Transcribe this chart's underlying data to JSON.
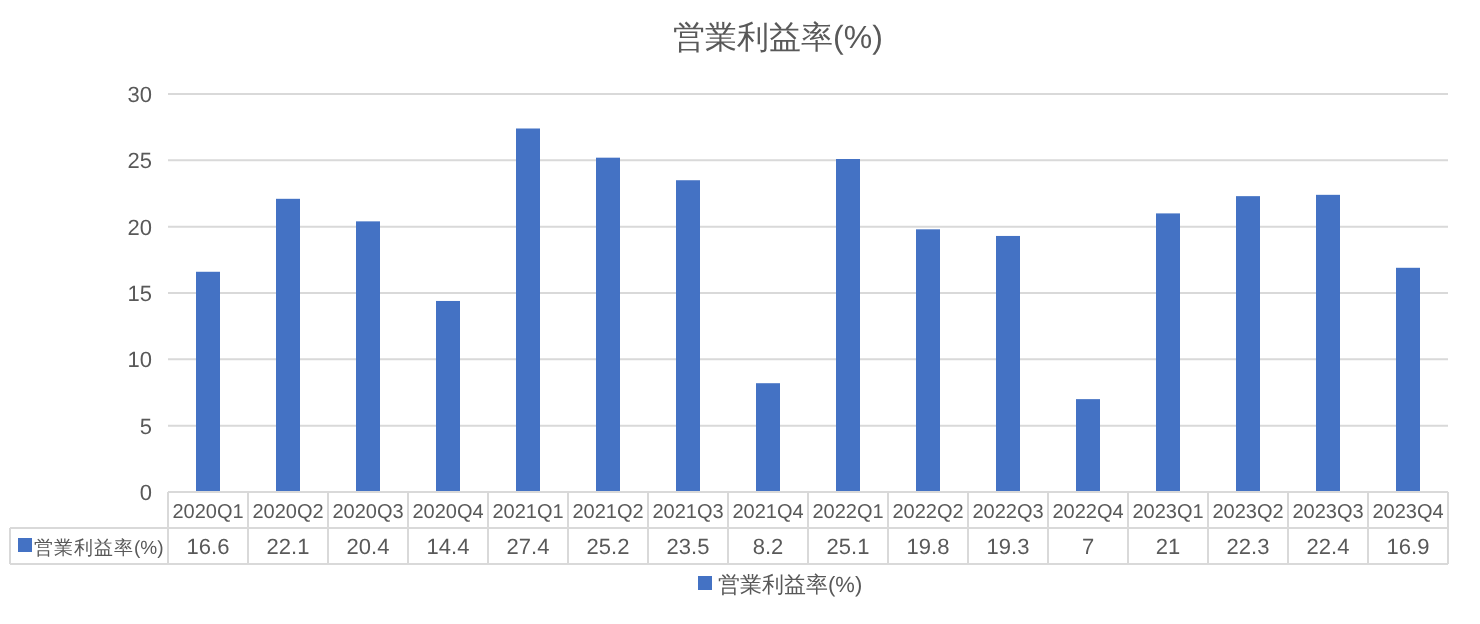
{
  "chart_data": {
    "type": "bar",
    "title": "営業利益率(%)",
    "categories": [
      "2020Q1",
      "2020Q2",
      "2020Q3",
      "2020Q4",
      "2021Q1",
      "2021Q2",
      "2021Q3",
      "2021Q4",
      "2022Q1",
      "2022Q2",
      "2022Q3",
      "2022Q4",
      "2023Q1",
      "2023Q2",
      "2023Q3",
      "2023Q4"
    ],
    "series": [
      {
        "name": "営業利益率(%)",
        "color": "#4472c4",
        "values": [
          16.6,
          22.1,
          20.4,
          14.4,
          27.4,
          25.2,
          23.5,
          8.2,
          25.1,
          19.8,
          19.3,
          7,
          21,
          22.3,
          22.4,
          16.9
        ]
      }
    ],
    "ylim": [
      0,
      30
    ],
    "yticks": [
      0,
      5,
      10,
      15,
      20,
      25,
      30
    ],
    "grid": "y",
    "legend": "bottom",
    "data_labels": true
  }
}
